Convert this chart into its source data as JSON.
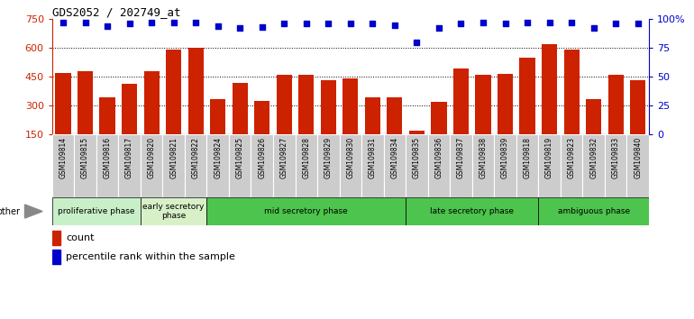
{
  "title": "GDS2052 / 202749_at",
  "samples": [
    "GSM109814",
    "GSM109815",
    "GSM109816",
    "GSM109817",
    "GSM109820",
    "GSM109821",
    "GSM109822",
    "GSM109824",
    "GSM109825",
    "GSM109826",
    "GSM109827",
    "GSM109828",
    "GSM109829",
    "GSM109830",
    "GSM109831",
    "GSM109834",
    "GSM109835",
    "GSM109836",
    "GSM109837",
    "GSM109838",
    "GSM109839",
    "GSM109818",
    "GSM109819",
    "GSM109823",
    "GSM109832",
    "GSM109833",
    "GSM109840"
  ],
  "counts": [
    470,
    480,
    340,
    410,
    480,
    590,
    600,
    330,
    415,
    325,
    460,
    460,
    430,
    440,
    340,
    340,
    165,
    320,
    490,
    460,
    465,
    550,
    620,
    590,
    330,
    460,
    430
  ],
  "percentiles": [
    97,
    97,
    94,
    96,
    97,
    97,
    97,
    94,
    92,
    93,
    96,
    96,
    96,
    96,
    96,
    95,
    80,
    92,
    96,
    97,
    96,
    97,
    97,
    97,
    92,
    96,
    96
  ],
  "phases": [
    {
      "label": "proliferative phase",
      "start": 0,
      "end": 4,
      "color": "#c8f0c8"
    },
    {
      "label": "early secretory\nphase",
      "start": 4,
      "end": 7,
      "color": "#d8f0d0"
    },
    {
      "label": "mid secretory phase",
      "start": 7,
      "end": 16,
      "color": "#60d060"
    },
    {
      "label": "late secretory phase",
      "start": 16,
      "end": 22,
      "color": "#60d060"
    },
    {
      "label": "ambiguous phase",
      "start": 22,
      "end": 27,
      "color": "#60d060"
    }
  ],
  "bar_color": "#cc2200",
  "dot_color": "#0000cc",
  "ylim_left": [
    150,
    750
  ],
  "ylim_right": [
    0,
    100
  ],
  "yticks_left": [
    150,
    300,
    450,
    600,
    750
  ],
  "yticks_right": [
    0,
    25,
    50,
    75,
    100
  ],
  "ytick_labels_right": [
    "0",
    "25",
    "50",
    "75",
    "100%"
  ],
  "grid_lines": [
    300,
    450,
    600
  ],
  "background_color": "#ffffff",
  "ticklabel_bg": "#d0d0d0",
  "title_fontsize": 9
}
